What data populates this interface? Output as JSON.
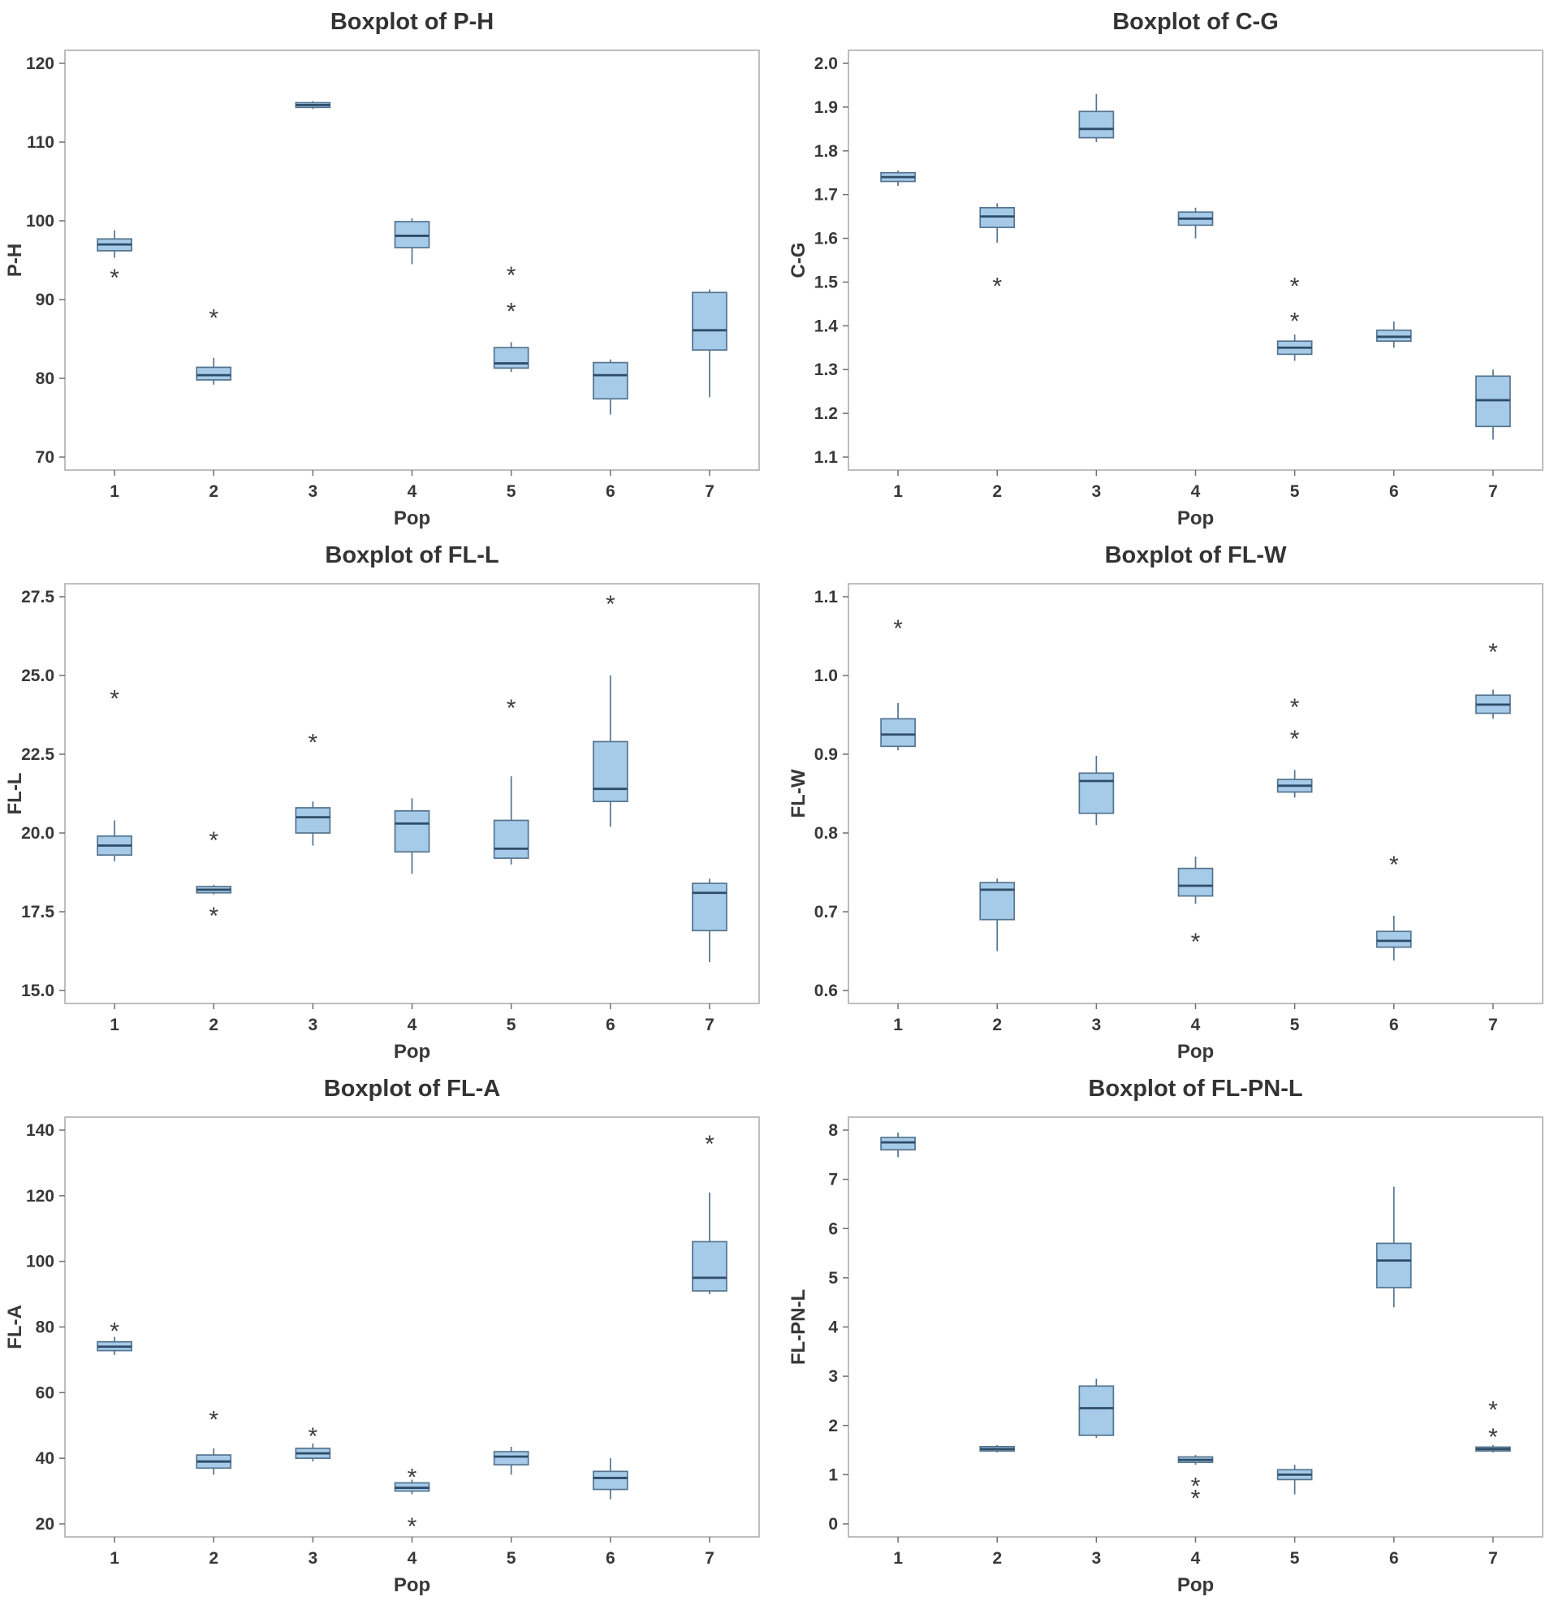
{
  "page": {
    "background": "#ffffff"
  },
  "style": {
    "box_fill": "#a6cbe9",
    "box_stroke": "#54748f",
    "median_color": "#2f4d68",
    "whisker_color": "#54748f",
    "outlier_color": "#3f3f3f",
    "frame_color": "#a8a8a8",
    "tick_color": "#6f6f6f",
    "text_color": "#383838",
    "title_color": "#333333"
  },
  "chart_data": [
    {
      "type": "boxplot",
      "title": "Boxplot of P-H",
      "xlabel": "Pop",
      "ylabel": "P-H",
      "categories": [
        "1",
        "2",
        "3",
        "4",
        "5",
        "6",
        "7"
      ],
      "ylim": [
        70,
        120
      ],
      "yticks": [
        70,
        80,
        90,
        100,
        110,
        120
      ],
      "ytick_labels": [
        "70",
        "80",
        "90",
        "100",
        "110",
        "120"
      ],
      "grid": false,
      "boxes": [
        {
          "whislo": 95.3,
          "q1": 96.2,
          "med": 97.0,
          "q3": 97.7,
          "whishi": 98.8,
          "outliers": [
            93.3
          ]
        },
        {
          "whislo": 79.2,
          "q1": 79.8,
          "med": 80.4,
          "q3": 81.4,
          "whishi": 82.6,
          "outliers": [
            88.2
          ]
        },
        {
          "whislo": 114.2,
          "q1": 114.4,
          "med": 114.7,
          "q3": 115.0,
          "whishi": 115.2,
          "outliers": []
        },
        {
          "whislo": 94.5,
          "q1": 96.6,
          "med": 98.1,
          "q3": 99.9,
          "whishi": 100.3,
          "outliers": []
        },
        {
          "whislo": 80.8,
          "q1": 81.3,
          "med": 81.9,
          "q3": 83.9,
          "whishi": 84.6,
          "outliers": [
            89.0,
            93.6
          ]
        },
        {
          "whislo": 75.4,
          "q1": 77.4,
          "med": 80.4,
          "q3": 82.0,
          "whishi": 82.4,
          "outliers": []
        },
        {
          "whislo": 77.6,
          "q1": 83.6,
          "med": 86.1,
          "q3": 90.9,
          "whishi": 91.3,
          "outliers": []
        }
      ]
    },
    {
      "type": "boxplot",
      "title": "Boxplot of C-G",
      "xlabel": "Pop",
      "ylabel": "C-G",
      "categories": [
        "1",
        "2",
        "3",
        "4",
        "5",
        "6",
        "7"
      ],
      "ylim": [
        1.1,
        2.0
      ],
      "yticks": [
        1.1,
        1.2,
        1.3,
        1.4,
        1.5,
        1.6,
        1.7,
        1.8,
        1.9,
        2.0
      ],
      "ytick_labels": [
        "1.1",
        "1.2",
        "1.3",
        "1.4",
        "1.5",
        "1.6",
        "1.7",
        "1.8",
        "1.9",
        "2.0"
      ],
      "grid": false,
      "boxes": [
        {
          "whislo": 1.72,
          "q1": 1.73,
          "med": 1.74,
          "q3": 1.75,
          "whishi": 1.755,
          "outliers": []
        },
        {
          "whislo": 1.59,
          "q1": 1.625,
          "med": 1.65,
          "q3": 1.67,
          "whishi": 1.68,
          "outliers": [
            1.5
          ]
        },
        {
          "whislo": 1.82,
          "q1": 1.83,
          "med": 1.85,
          "q3": 1.89,
          "whishi": 1.93,
          "outliers": []
        },
        {
          "whislo": 1.6,
          "q1": 1.63,
          "med": 1.645,
          "q3": 1.66,
          "whishi": 1.67,
          "outliers": []
        },
        {
          "whislo": 1.32,
          "q1": 1.335,
          "med": 1.35,
          "q3": 1.365,
          "whishi": 1.38,
          "outliers": [
            1.42,
            1.5
          ]
        },
        {
          "whislo": 1.35,
          "q1": 1.365,
          "med": 1.375,
          "q3": 1.39,
          "whishi": 1.41,
          "outliers": []
        },
        {
          "whislo": 1.14,
          "q1": 1.17,
          "med": 1.23,
          "q3": 1.285,
          "whishi": 1.3,
          "outliers": []
        }
      ]
    },
    {
      "type": "boxplot",
      "title": "Boxplot of FL-L",
      "xlabel": "Pop",
      "ylabel": "FL-L",
      "categories": [
        "1",
        "2",
        "3",
        "4",
        "5",
        "6",
        "7"
      ],
      "ylim": [
        15.0,
        27.5
      ],
      "yticks": [
        15.0,
        17.5,
        20.0,
        22.5,
        25.0,
        27.5
      ],
      "ytick_labels": [
        "15.0",
        "17.5",
        "20.0",
        "22.5",
        "25.0",
        "27.5"
      ],
      "grid": false,
      "boxes": [
        {
          "whislo": 19.1,
          "q1": 19.3,
          "med": 19.6,
          "q3": 19.9,
          "whishi": 20.4,
          "outliers": [
            24.4
          ]
        },
        {
          "whislo": 18.05,
          "q1": 18.1,
          "med": 18.2,
          "q3": 18.3,
          "whishi": 18.35,
          "outliers": [
            19.9,
            17.5
          ]
        },
        {
          "whislo": 19.6,
          "q1": 20.0,
          "med": 20.5,
          "q3": 20.8,
          "whishi": 21.0,
          "outliers": [
            23.0
          ]
        },
        {
          "whislo": 18.7,
          "q1": 19.4,
          "med": 20.3,
          "q3": 20.7,
          "whishi": 21.1,
          "outliers": []
        },
        {
          "whislo": 19.0,
          "q1": 19.2,
          "med": 19.5,
          "q3": 20.4,
          "whishi": 21.8,
          "outliers": [
            24.1
          ]
        },
        {
          "whislo": 20.2,
          "q1": 21.0,
          "med": 21.4,
          "q3": 22.9,
          "whishi": 25.0,
          "outliers": [
            27.4
          ]
        },
        {
          "whislo": 15.9,
          "q1": 16.9,
          "med": 18.1,
          "q3": 18.4,
          "whishi": 18.55,
          "outliers": []
        }
      ]
    },
    {
      "type": "boxplot",
      "title": "Boxplot of FL-W",
      "xlabel": "Pop",
      "ylabel": "FL-W",
      "categories": [
        "1",
        "2",
        "3",
        "4",
        "5",
        "6",
        "7"
      ],
      "ylim": [
        0.6,
        1.1
      ],
      "yticks": [
        0.6,
        0.7,
        0.8,
        0.9,
        1.0,
        1.1
      ],
      "ytick_labels": [
        "0.6",
        "0.7",
        "0.8",
        "0.9",
        "1.0",
        "1.1"
      ],
      "grid": false,
      "boxes": [
        {
          "whislo": 0.905,
          "q1": 0.91,
          "med": 0.925,
          "q3": 0.945,
          "whishi": 0.965,
          "outliers": [
            1.065
          ]
        },
        {
          "whislo": 0.65,
          "q1": 0.69,
          "med": 0.728,
          "q3": 0.737,
          "whishi": 0.742,
          "outliers": []
        },
        {
          "whislo": 0.81,
          "q1": 0.825,
          "med": 0.866,
          "q3": 0.876,
          "whishi": 0.898,
          "outliers": []
        },
        {
          "whislo": 0.71,
          "q1": 0.72,
          "med": 0.733,
          "q3": 0.755,
          "whishi": 0.77,
          "outliers": [
            0.667
          ]
        },
        {
          "whislo": 0.845,
          "q1": 0.852,
          "med": 0.86,
          "q3": 0.868,
          "whishi": 0.88,
          "outliers": [
            0.925,
            0.965
          ]
        },
        {
          "whislo": 0.638,
          "q1": 0.655,
          "med": 0.663,
          "q3": 0.675,
          "whishi": 0.695,
          "outliers": [
            0.765
          ]
        },
        {
          "whislo": 0.945,
          "q1": 0.952,
          "med": 0.963,
          "q3": 0.975,
          "whishi": 0.982,
          "outliers": [
            1.035
          ]
        }
      ]
    },
    {
      "type": "boxplot",
      "title": "Boxplot of FL-A",
      "xlabel": "Pop",
      "ylabel": "FL-A",
      "categories": [
        "1",
        "2",
        "3",
        "4",
        "5",
        "6",
        "7"
      ],
      "ylim": [
        20,
        140
      ],
      "yticks": [
        20,
        40,
        60,
        80,
        100,
        120,
        140
      ],
      "ytick_labels": [
        "20",
        "40",
        "60",
        "80",
        "100",
        "120",
        "140"
      ],
      "grid": false,
      "boxes": [
        {
          "whislo": 71.5,
          "q1": 72.8,
          "med": 74.0,
          "q3": 75.5,
          "whishi": 77.0,
          "outliers": [
            80.0
          ]
        },
        {
          "whislo": 35.0,
          "q1": 37.0,
          "med": 39.0,
          "q3": 41.0,
          "whishi": 43.0,
          "outliers": [
            53.0
          ]
        },
        {
          "whislo": 39.0,
          "q1": 40.0,
          "med": 41.5,
          "q3": 43.0,
          "whishi": 44.5,
          "outliers": [
            48.0
          ]
        },
        {
          "whislo": 29.0,
          "q1": 30.0,
          "med": 31.0,
          "q3": 32.5,
          "whishi": 33.5,
          "outliers": [
            35.5,
            20.5
          ]
        },
        {
          "whislo": 35.0,
          "q1": 38.0,
          "med": 40.5,
          "q3": 42.0,
          "whishi": 43.5,
          "outliers": []
        },
        {
          "whislo": 27.5,
          "q1": 30.5,
          "med": 34.0,
          "q3": 36.0,
          "whishi": 40.0,
          "outliers": []
        },
        {
          "whislo": 90.0,
          "q1": 91.0,
          "med": 95.0,
          "q3": 106.0,
          "whishi": 121.0,
          "outliers": [
            137.0
          ]
        }
      ]
    },
    {
      "type": "boxplot",
      "title": "Boxplot of FL-PN-L",
      "xlabel": "Pop",
      "ylabel": "FL-PN-L",
      "categories": [
        "1",
        "2",
        "3",
        "4",
        "5",
        "6",
        "7"
      ],
      "ylim": [
        0,
        8
      ],
      "yticks": [
        0,
        1,
        2,
        3,
        4,
        5,
        6,
        7,
        8
      ],
      "ytick_labels": [
        "0",
        "1",
        "2",
        "3",
        "4",
        "5",
        "6",
        "7",
        "8"
      ],
      "grid": false,
      "boxes": [
        {
          "whislo": 7.45,
          "q1": 7.6,
          "med": 7.75,
          "q3": 7.85,
          "whishi": 7.95,
          "outliers": []
        },
        {
          "whislo": 1.45,
          "q1": 1.48,
          "med": 1.52,
          "q3": 1.57,
          "whishi": 1.6,
          "outliers": []
        },
        {
          "whislo": 1.75,
          "q1": 1.8,
          "med": 2.35,
          "q3": 2.8,
          "whishi": 2.95,
          "outliers": []
        },
        {
          "whislo": 1.2,
          "q1": 1.25,
          "med": 1.3,
          "q3": 1.36,
          "whishi": 1.4,
          "outliers": [
            0.85,
            0.6
          ]
        },
        {
          "whislo": 0.6,
          "q1": 0.9,
          "med": 1.0,
          "q3": 1.1,
          "whishi": 1.2,
          "outliers": []
        },
        {
          "whislo": 4.4,
          "q1": 4.8,
          "med": 5.35,
          "q3": 5.7,
          "whishi": 6.85,
          "outliers": []
        },
        {
          "whislo": 1.45,
          "q1": 1.48,
          "med": 1.52,
          "q3": 1.56,
          "whishi": 1.6,
          "outliers": [
            2.4,
            1.85
          ]
        }
      ]
    }
  ]
}
